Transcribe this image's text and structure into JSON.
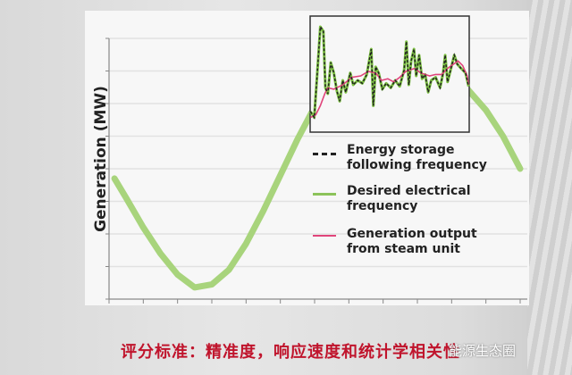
{
  "chart_data": {
    "type": "line",
    "ylabel": "Generation (MW)",
    "xlabel": "",
    "title": "",
    "grid": true,
    "xlim": [
      0,
      12
    ],
    "ylim": [
      0,
      8
    ],
    "main_series": {
      "name": "Desired electrical frequency",
      "color": "#a8d47c",
      "points": [
        [
          0.16,
          3.7
        ],
        [
          0.5,
          3.1
        ],
        [
          1.0,
          2.2
        ],
        [
          1.5,
          1.4
        ],
        [
          2.0,
          0.75
        ],
        [
          2.5,
          0.36
        ],
        [
          3.0,
          0.45
        ],
        [
          3.5,
          0.9
        ],
        [
          4.0,
          1.7
        ],
        [
          4.5,
          2.7
        ],
        [
          5.0,
          3.8
        ],
        [
          5.5,
          4.9
        ],
        [
          5.9,
          5.7
        ],
        [
          6.5,
          6.7
        ],
        [
          7.5,
          7.8
        ],
        [
          8.5,
          8.2
        ],
        [
          9.5,
          7.6
        ],
        [
          10.5,
          6.4
        ],
        [
          11.0,
          5.8
        ],
        [
          11.5,
          5.0
        ],
        [
          12.0,
          4.0
        ]
      ]
    },
    "inset": {
      "xlim": [
        0,
        100
      ],
      "ylim": [
        0,
        100
      ],
      "series": [
        {
          "name": "Desired electrical frequency",
          "color": "#7cc142",
          "style": "solid",
          "points": [
            [
              0.2,
              17.7
            ],
            [
              2.6,
              12.6
            ],
            [
              4.5,
              51
            ],
            [
              6.4,
              90.8
            ],
            [
              8.3,
              86.9
            ],
            [
              9.6,
              38.2
            ],
            [
              11.1,
              33.1
            ],
            [
              13.0,
              60
            ],
            [
              14.9,
              51
            ],
            [
              16.8,
              35.6
            ],
            [
              18.6,
              26.7
            ],
            [
              20.5,
              44.6
            ],
            [
              22.4,
              34.4
            ],
            [
              25.2,
              51
            ],
            [
              27.1,
              40.8
            ],
            [
              29.9,
              44.6
            ],
            [
              32.8,
              42.1
            ],
            [
              35.6,
              49.7
            ],
            [
              38.4,
              71.5
            ],
            [
              39.7,
              22.8
            ],
            [
              41.2,
              56.2
            ],
            [
              43.1,
              51
            ],
            [
              45.4,
              36.9
            ],
            [
              47.8,
              42.1
            ],
            [
              50.7,
              38.2
            ],
            [
              53.5,
              44.6
            ],
            [
              56.3,
              39.5
            ],
            [
              59.1,
              53.6
            ],
            [
              60.5,
              77.9
            ],
            [
              62.0,
              40.8
            ],
            [
              63.5,
              61.3
            ],
            [
              65.3,
              71.5
            ],
            [
              66.7,
              48.5
            ],
            [
              68.5,
              66.4
            ],
            [
              70.4,
              45.9
            ],
            [
              72.3,
              49.7
            ],
            [
              74.2,
              34.4
            ],
            [
              76.1,
              44.6
            ],
            [
              78.9,
              47.2
            ],
            [
              81.7,
              38.2
            ],
            [
              83.6,
              51
            ],
            [
              84.9,
              66.4
            ],
            [
              86.4,
              43.3
            ],
            [
              88.3,
              53.6
            ],
            [
              90.6,
              66.4
            ],
            [
              92.5,
              58.7
            ],
            [
              94.9,
              54.9
            ],
            [
              97.7,
              51
            ],
            [
              99.6,
              39.5
            ]
          ]
        },
        {
          "name": "Energy storage following frequency",
          "color": "#222222",
          "style": "dashed",
          "same_as": "Desired electrical frequency"
        },
        {
          "name": "Generation output from steam unit",
          "color": "#e0457b",
          "style": "solid",
          "points": [
            [
              0.2,
              12.6
            ],
            [
              3.6,
              15.1
            ],
            [
              6.4,
              22.8
            ],
            [
              9.2,
              33.1
            ],
            [
              11.1,
              38.2
            ],
            [
              14.9,
              37
            ],
            [
              20.5,
              40.8
            ],
            [
              26.2,
              47.2
            ],
            [
              31.8,
              48.5
            ],
            [
              36.5,
              52.3
            ],
            [
              41.2,
              51
            ],
            [
              45.0,
              44.6
            ],
            [
              48.8,
              46
            ],
            [
              52.5,
              43.3
            ],
            [
              56.3,
              47.2
            ],
            [
              60.1,
              52.3
            ],
            [
              65.7,
              54.9
            ],
            [
              69.5,
              51
            ],
            [
              75.1,
              48.5
            ],
            [
              78.9,
              49.7
            ],
            [
              82.7,
              49.7
            ],
            [
              86.4,
              54.9
            ],
            [
              90.2,
              58.7
            ],
            [
              93.0,
              61.3
            ],
            [
              95.9,
              57.4
            ],
            [
              98.7,
              48.5
            ],
            [
              99.6,
              41
            ]
          ]
        }
      ]
    },
    "legend": {
      "placement": "right-middle",
      "entries": [
        {
          "label": "Energy storage following frequency",
          "style": "dashed",
          "color": "#222222"
        },
        {
          "label": "Desired electrical frequency",
          "style": "solid",
          "color": "#8cc35a"
        },
        {
          "label": "Generation output from steam unit",
          "style": "solid",
          "color": "#e0457b"
        }
      ]
    }
  },
  "caption": "评分标准：精准度，响应速度和统计学相关性",
  "watermark": "能源生态圈"
}
